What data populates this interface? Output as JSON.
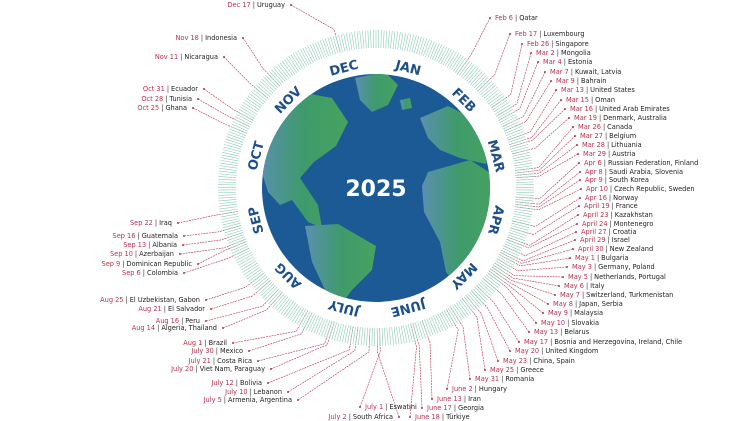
{
  "center_title": "2025",
  "months": [
    "JAN",
    "FEB",
    "MAR",
    "APR",
    "MAY",
    "JUNE",
    "JULY",
    "AUG",
    "SEP",
    "OCT",
    "NOV",
    "DEC"
  ],
  "colors": {
    "ocean": "#1b5a95",
    "land": "#3f9a6c",
    "month_text": "#1d4f8a",
    "date_text": "#b8324e",
    "leader": "#b8324e",
    "hatch": "#8ccab6"
  },
  "separator": "|",
  "entries": [
    {
      "date": "Feb 6",
      "countries": "Qatar"
    },
    {
      "date": "Feb 17",
      "countries": "Luxembourg"
    },
    {
      "date": "Feb 26",
      "countries": "Singapore"
    },
    {
      "date": "Mar 2",
      "countries": "Mongolia"
    },
    {
      "date": "Mar 4",
      "countries": "Estonia"
    },
    {
      "date": "Mar 7",
      "countries": "Kuwait, Latvia"
    },
    {
      "date": "Mar 9",
      "countries": "Bahrain"
    },
    {
      "date": "Mar 13",
      "countries": "United States"
    },
    {
      "date": "Mar 15",
      "countries": "Oman"
    },
    {
      "date": "Mar 16",
      "countries": "United Arab Emirates"
    },
    {
      "date": "Mar 19",
      "countries": "Denmark, Australia"
    },
    {
      "date": "Mar 26",
      "countries": "Canada"
    },
    {
      "date": "Mar 27",
      "countries": "Belgium"
    },
    {
      "date": "Mar 28",
      "countries": "Lithuania"
    },
    {
      "date": "Mar 29",
      "countries": "Austria"
    },
    {
      "date": "Apr 6",
      "countries": "Russian Federation, Finland"
    },
    {
      "date": "Apr 8",
      "countries": "Saudi Arabia, Slovenia"
    },
    {
      "date": "Apr 9",
      "countries": "South Korea"
    },
    {
      "date": "Apr 10",
      "countries": "Czech Republic, Sweden"
    },
    {
      "date": "Apr 16",
      "countries": "Norway"
    },
    {
      "date": "April 19",
      "countries": "France"
    },
    {
      "date": "April 23",
      "countries": "Kazakhstan"
    },
    {
      "date": "April 24",
      "countries": "Montenegro"
    },
    {
      "date": "April 27",
      "countries": "Croatia"
    },
    {
      "date": "April 29",
      "countries": "Israel"
    },
    {
      "date": "April 30",
      "countries": "New Zealand"
    },
    {
      "date": "May 1",
      "countries": "Bulgaria"
    },
    {
      "date": "May 3",
      "countries": "Germany, Poland"
    },
    {
      "date": "May 5",
      "countries": "Netherlands, Portugal"
    },
    {
      "date": "May 6",
      "countries": "Italy"
    },
    {
      "date": "May 7",
      "countries": "Switzerland, Turkmenistan"
    },
    {
      "date": "May 8",
      "countries": "Japan, Serbia"
    },
    {
      "date": "May 9",
      "countries": "Malaysia"
    },
    {
      "date": "May 10",
      "countries": "Slovakia"
    },
    {
      "date": "May 13",
      "countries": "Belarus"
    },
    {
      "date": "May 17",
      "countries": "Bosnia and Herzegovina, Ireland, Chile"
    },
    {
      "date": "May 20",
      "countries": "United Kingdom"
    },
    {
      "date": "May 23",
      "countries": "China, Spain"
    },
    {
      "date": "May 25",
      "countries": "Greece"
    },
    {
      "date": "May 31",
      "countries": "Romania"
    },
    {
      "date": "June 2",
      "countries": "Hungary"
    },
    {
      "date": "June 13",
      "countries": "Iran"
    },
    {
      "date": "June 17",
      "countries": "Georgia"
    },
    {
      "date": "June 18",
      "countries": "Türkiye"
    },
    {
      "date": "July 1",
      "countries": "Eswatini"
    },
    {
      "date": "July 2",
      "countries": "South Africa"
    },
    {
      "date": "July 5",
      "countries": "Armenia, Argentina"
    },
    {
      "date": "July 10",
      "countries": "Lebanon"
    },
    {
      "date": "July 12",
      "countries": "Bolivia"
    },
    {
      "date": "July 20",
      "countries": "Viet Nam, Paraguay"
    },
    {
      "date": "July 21",
      "countries": "Costa Rica"
    },
    {
      "date": "July 30",
      "countries": "Mexico"
    },
    {
      "date": "Aug 1",
      "countries": "Brazil"
    },
    {
      "date": "Aug 14",
      "countries": "Algeria, Thailand"
    },
    {
      "date": "Aug 16",
      "countries": "Peru"
    },
    {
      "date": "Aug 21",
      "countries": "El Salvador"
    },
    {
      "date": "Aug 25",
      "countries": "El Uzbekistan, Gabon"
    },
    {
      "date": "Sep 6",
      "countries": "Colombia"
    },
    {
      "date": "Sep 9",
      "countries": "Dominican Republic"
    },
    {
      "date": "Sep 10",
      "countries": "Azerbaijan"
    },
    {
      "date": "Sep 13",
      "countries": "Albania"
    },
    {
      "date": "Sep 16",
      "countries": "Guatemala"
    },
    {
      "date": "Sep 22",
      "countries": "Iraq"
    },
    {
      "date": "Oct 25",
      "countries": "Ghana"
    },
    {
      "date": "Oct 28",
      "countries": "Tunisia"
    },
    {
      "date": "Oct 31",
      "countries": "Ecuador"
    },
    {
      "date": "Nov 11",
      "countries": "Nicaragua"
    },
    {
      "date": "Nov 18",
      "countries": "Indonesia"
    },
    {
      "date": "Dec 17",
      "countries": "Uruguay"
    }
  ]
}
